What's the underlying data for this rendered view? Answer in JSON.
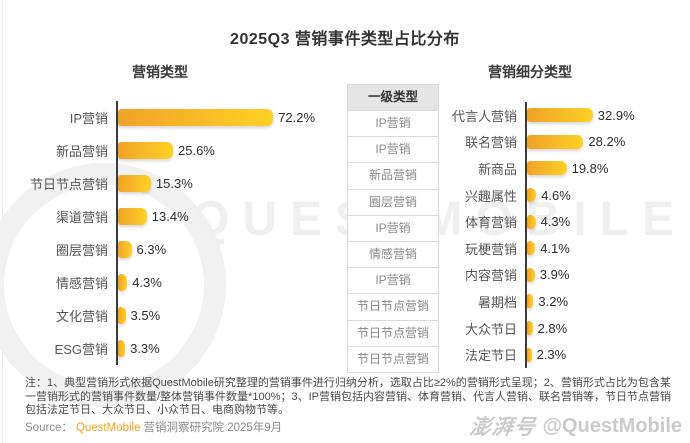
{
  "page": {
    "title": "2025Q3 营销事件类型占比分布"
  },
  "colors": {
    "accent_orange": "#F7A21E",
    "bar_gradient_start": "#F0A22A",
    "bar_gradient_end": "#FFD125",
    "axis": "#3C3C3C",
    "table_header_bg": "#E6E6E6",
    "watermark_gray": "#F0F0F0"
  },
  "chart_data": [
    {
      "type": "bar",
      "orientation": "horizontal",
      "title": "营销类型",
      "categories": [
        "IP营销",
        "新品营销",
        "节日节点营销",
        "渠道营销",
        "圈层营销",
        "情感营销",
        "文化营销",
        "ESG营销"
      ],
      "values": [
        72.2,
        25.6,
        15.3,
        13.4,
        6.3,
        4.3,
        3.5,
        3.3
      ],
      "value_suffix": "%",
      "xlim": [
        0,
        80
      ],
      "grid": false,
      "legend": "none",
      "bar_color_gradient": [
        "#F0A22A",
        "#FFD125"
      ]
    },
    {
      "type": "bar",
      "orientation": "horizontal",
      "title": "营销细分类型",
      "categories": [
        "代言人营销",
        "联名营销",
        "新商品",
        "兴趣属性",
        "体育营销",
        "玩梗营销",
        "内容营销",
        "暑期档",
        "大众节日",
        "法定节日"
      ],
      "values": [
        32.9,
        28.2,
        19.8,
        4.6,
        4.3,
        4.1,
        3.9,
        3.2,
        2.8,
        2.3
      ],
      "value_suffix": "%",
      "xlim": [
        0,
        35
      ],
      "grid": false,
      "legend": "none",
      "bar_color_gradient": [
        "#F0A22A",
        "#FFD125"
      ]
    },
    {
      "type": "table",
      "title": "一级类型",
      "rows": [
        "IP营销",
        "IP营销",
        "新品营销",
        "圈层营销",
        "IP营销",
        "情感营销",
        "IP营销",
        "节日节点营销",
        "节日节点营销",
        "节日节点营销"
      ]
    }
  ],
  "notes": {
    "note_text": "注：1、典型营销形式依据QuestMobile研究整理的营销事件进行归纳分析，选取占比≥2%的营销形式呈现；2、营销形式占比为包含某一营销形式的营销事件数量/整体营销事件数量*100%；3、IP营销包括内容营销、体育营销、代言人营销、联名营销等，节日节点营销包括法定节日、大众节日、小众节日、电商购物节等。",
    "source_prefix": "Source：",
    "source_brand": "QuestMobile",
    "source_suffix": "营销洞察研究院 2025年9月"
  },
  "watermarks": {
    "brand_word": "QUESTMOBILE",
    "footer_logo": "澎湃号",
    "footer_handle": "@QuestMobile"
  }
}
